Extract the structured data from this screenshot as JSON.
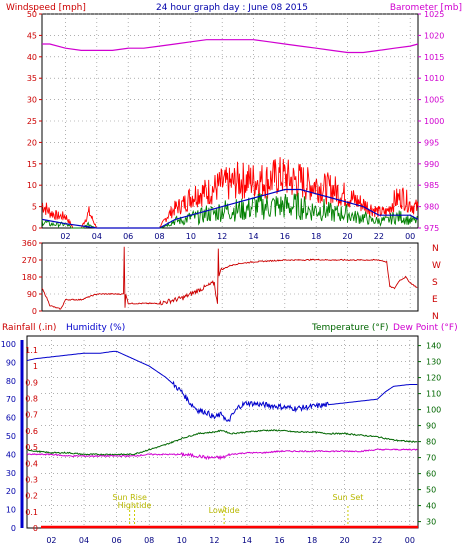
{
  "colors": {
    "wind": "#ff0000",
    "gust": "#ff0000",
    "wind_avg": "#008000",
    "wind_line": "#0000c0",
    "baro": "#d000d0",
    "dir": "#cc0000",
    "hum": "#0000cc",
    "temp": "#006600",
    "dew": "#d000d0",
    "rain": "#ff0000",
    "event": "#cccc00",
    "frame": "#000000",
    "grid": "#808080"
  },
  "chart_data": [
    {
      "type": "line",
      "title": "24 hour graph day : June 08 2015",
      "left_label": "Windspeed [mph]",
      "right_label": "Barometer [mb]",
      "y_left_ticks": [
        "0",
        "5",
        "10",
        "15",
        "20",
        "25",
        "30",
        "35",
        "40",
        "45",
        "50"
      ],
      "y_right_ticks": [
        "975",
        "980",
        "985",
        "990",
        "995",
        "1000",
        "1005",
        "1010",
        "1015",
        "1020",
        "1025"
      ],
      "ylim_left": [
        0,
        50
      ],
      "ylim_right": [
        975,
        1025
      ],
      "x_ticks": [
        "02",
        "04",
        "06",
        "08",
        "10",
        "12",
        "14",
        "16",
        "18",
        "20",
        "22",
        "00"
      ],
      "xlim_hours": [
        0.5,
        24.5
      ],
      "series": [
        {
          "name": "Windspeed",
          "kind": "gust",
          "hours": [
            0.5,
            1.0,
            1.5,
            2.0,
            2.5,
            3.0,
            3.5,
            4.0,
            4.5,
            5.0,
            5.5,
            6.0,
            6.5,
            7.0,
            7.5,
            8.0,
            8.5,
            9.0,
            9.5,
            10.0,
            10.5,
            11.0,
            11.5,
            12.0,
            12.5,
            13.0,
            13.5,
            14.0,
            14.5,
            15.0,
            15.5,
            16.0,
            16.5,
            17.0,
            17.5,
            18.0,
            18.5,
            19.0,
            19.5,
            20.0,
            20.5,
            21.0,
            21.5,
            22.0,
            22.5,
            23.0,
            23.5,
            24.0,
            24.5
          ],
          "values": [
            6,
            4,
            3,
            3,
            0,
            0,
            4,
            0,
            0,
            0,
            0,
            0,
            0,
            0,
            0,
            0,
            3,
            5,
            6,
            8,
            9,
            9,
            10,
            11,
            11,
            12,
            12,
            12,
            12,
            12,
            13,
            13,
            12,
            12,
            11,
            11,
            10,
            10,
            9,
            8,
            7,
            6,
            5,
            4,
            4,
            7,
            8,
            6,
            5
          ]
        },
        {
          "name": "Average",
          "kind": "avg",
          "hours": [
            0.5,
            1.0,
            1.5,
            2.0,
            2.5,
            3.0,
            3.5,
            4.0,
            4.5,
            5.0,
            5.5,
            6.0,
            6.5,
            7.0,
            7.5,
            8.0,
            8.5,
            9.0,
            9.5,
            10.0,
            10.5,
            11.0,
            11.5,
            12.0,
            12.5,
            13.0,
            13.5,
            14.0,
            14.5,
            15.0,
            15.5,
            16.0,
            16.5,
            17.0,
            17.5,
            18.0,
            18.5,
            19.0,
            19.5,
            20.0,
            20.5,
            21.0,
            21.5,
            22.0,
            22.5,
            23.0,
            23.5,
            24.0,
            24.5
          ],
          "values": [
            2,
            1,
            1,
            1,
            0,
            0,
            1,
            0,
            0,
            0,
            0,
            0,
            0,
            0,
            0,
            0,
            1,
            2,
            2,
            3,
            3,
            4,
            4,
            5,
            5,
            5,
            5,
            6,
            6,
            6,
            6,
            6,
            6,
            6,
            5,
            5,
            5,
            4,
            4,
            4,
            3,
            3,
            2,
            2,
            2,
            3,
            3,
            2,
            2
          ]
        },
        {
          "name": "Wind line",
          "kind": "line",
          "hours": [
            0.5,
            2.0,
            4.0,
            6.0,
            8.0,
            9.0,
            10.0,
            11.0,
            12.0,
            13.0,
            14.0,
            15.0,
            16.0,
            17.0,
            18.0,
            19.0,
            20.0,
            21.0,
            22.0,
            23.0,
            24.0,
            24.5
          ],
          "values": [
            2,
            1,
            0,
            0,
            0,
            2,
            3,
            4,
            5,
            6,
            7,
            8,
            9,
            9,
            8,
            7,
            6,
            5,
            3,
            3,
            3,
            2
          ]
        },
        {
          "name": "Barometer",
          "kind": "baro",
          "hours": [
            0.5,
            1.0,
            2.0,
            3.0,
            4.0,
            5.0,
            6.0,
            7.0,
            8.0,
            9.0,
            10.0,
            11.0,
            12.0,
            13.0,
            14.0,
            15.0,
            16.0,
            17.0,
            18.0,
            19.0,
            20.0,
            21.0,
            22.0,
            23.0,
            24.0,
            24.5
          ],
          "values": [
            1018,
            1018,
            1017,
            1016.5,
            1016.5,
            1016.5,
            1017,
            1017,
            1017.5,
            1018,
            1018.5,
            1019,
            1019,
            1019,
            1019,
            1018.5,
            1018,
            1017.5,
            1017,
            1016.5,
            1016,
            1016,
            1016.5,
            1017,
            1017.5,
            1018
          ]
        }
      ]
    },
    {
      "type": "line",
      "title": "",
      "y_left_ticks": [
        "360",
        "270",
        "180",
        "90",
        "0"
      ],
      "y_right_labels": [
        "N",
        "W",
        "S",
        "E",
        "N"
      ],
      "ylim": [
        0,
        360
      ],
      "series": [
        {
          "name": "Wind direction",
          "hours": [
            0.5,
            0.8,
            1.0,
            1.3,
            1.7,
            2.0,
            2.5,
            3.0,
            4.0,
            5.0,
            5.5,
            5.7,
            5.75,
            5.8,
            5.85,
            6.0,
            7.0,
            8.0,
            8.5,
            9.0,
            9.5,
            10.0,
            10.5,
            11.0,
            11.5,
            11.7,
            11.75,
            11.8,
            11.85,
            12.0,
            12.5,
            13.0,
            13.5,
            14.0,
            15.0,
            16.0,
            17.0,
            18.0,
            19.0,
            20.0,
            21.0,
            22.0,
            22.5,
            22.7,
            23.0,
            23.3,
            23.7,
            24.0,
            24.5
          ],
          "values": [
            120,
            70,
            30,
            20,
            10,
            60,
            60,
            60,
            90,
            90,
            90,
            90,
            340,
            20,
            90,
            40,
            40,
            40,
            50,
            60,
            70,
            90,
            110,
            130,
            150,
            30,
            340,
            190,
            210,
            220,
            240,
            250,
            255,
            260,
            265,
            270,
            270,
            272,
            270,
            270,
            270,
            270,
            260,
            130,
            120,
            160,
            180,
            150,
            120
          ]
        }
      ]
    },
    {
      "type": "line",
      "title": "",
      "left_label": "Rainfall (.in)",
      "center_label": "Humidity (%)",
      "temp_label": "Temperature (°F)",
      "dew_label": "Dew Point (°F)",
      "y_rain_ticks": [
        "0",
        "0.1",
        "0.2",
        "0.3",
        "0.4",
        "0.5",
        "0.6",
        "0.7",
        "0.8",
        "0.9",
        "1",
        "1.1"
      ],
      "y_hum_ticks": [
        "0",
        "10",
        "20",
        "30",
        "40",
        "50",
        "60",
        "70",
        "80",
        "90",
        "100"
      ],
      "y_temp_ticks": [
        "30",
        "40",
        "50",
        "60",
        "70",
        "80",
        "90",
        "100",
        "110",
        "120",
        "130",
        "140"
      ],
      "ylim_hum": [
        0,
        100
      ],
      "ylim_temp": [
        26,
        146
      ],
      "events": [
        {
          "label": "Sun Rise",
          "hour": 6.8
        },
        {
          "label": "Hightide",
          "hour": 7.1
        },
        {
          "label": "Lowtide",
          "hour": 12.6
        },
        {
          "label": "Sun Set",
          "hour": 20.2
        }
      ],
      "series": [
        {
          "name": "Humidity",
          "hours": [
            0.5,
            1.0,
            2.0,
            3.0,
            4.0,
            5.0,
            5.8,
            6.0,
            6.5,
            7.0,
            8.0,
            9.0,
            10.0,
            10.5,
            11.0,
            11.5,
            12.0,
            12.5,
            12.8,
            13.0,
            13.5,
            14.0,
            15.0,
            16.0,
            17.0,
            18.0,
            19.0,
            20.0,
            21.0,
            22.0,
            22.5,
            23.0,
            24.0,
            24.5
          ],
          "values": [
            91,
            92,
            93,
            94,
            95,
            95,
            96,
            96,
            94,
            92,
            88,
            82,
            74,
            68,
            64,
            63,
            60,
            62,
            57,
            60,
            66,
            68,
            67,
            66,
            65,
            66,
            67,
            68,
            69,
            70,
            74,
            77,
            78,
            78
          ]
        },
        {
          "name": "Temperature",
          "hours": [
            0.5,
            1.0,
            2.0,
            3.0,
            4.0,
            5.0,
            6.0,
            7.0,
            8.0,
            9.0,
            10.0,
            11.0,
            12.0,
            12.5,
            13.0,
            14.0,
            15.0,
            16.0,
            17.0,
            18.0,
            19.0,
            20.0,
            21.0,
            22.0,
            23.0,
            24.0,
            24.5
          ],
          "values": [
            75,
            74,
            73,
            73,
            72,
            72,
            72,
            72,
            75,
            78,
            82,
            85,
            86,
            87,
            85,
            86,
            87,
            87,
            86,
            86,
            85,
            85,
            84,
            83,
            81,
            80,
            80
          ]
        },
        {
          "name": "Dew Point",
          "hours": [
            0.5,
            1.0,
            2.0,
            3.0,
            4.0,
            5.0,
            6.0,
            7.0,
            8.0,
            9.0,
            10.0,
            11.0,
            11.5,
            12.0,
            12.5,
            13.0,
            14.0,
            15.0,
            16.0,
            17.0,
            18.0,
            19.0,
            20.0,
            21.0,
            22.0,
            23.0,
            24.0,
            24.5
          ],
          "values": [
            72,
            72,
            72,
            71,
            71,
            71,
            71,
            71,
            72,
            72,
            72,
            71,
            70,
            70,
            70,
            72,
            73,
            73,
            74,
            74,
            74,
            74,
            74,
            74,
            75,
            75,
            75,
            75
          ]
        },
        {
          "name": "Rainfall",
          "hours": [
            0.5,
            24.5
          ],
          "values": [
            0,
            0
          ]
        }
      ]
    }
  ],
  "bottom_x_ticks": [
    "02",
    "04",
    "06",
    "08",
    "10",
    "12",
    "14",
    "16",
    "18",
    "20",
    "22",
    "00"
  ]
}
